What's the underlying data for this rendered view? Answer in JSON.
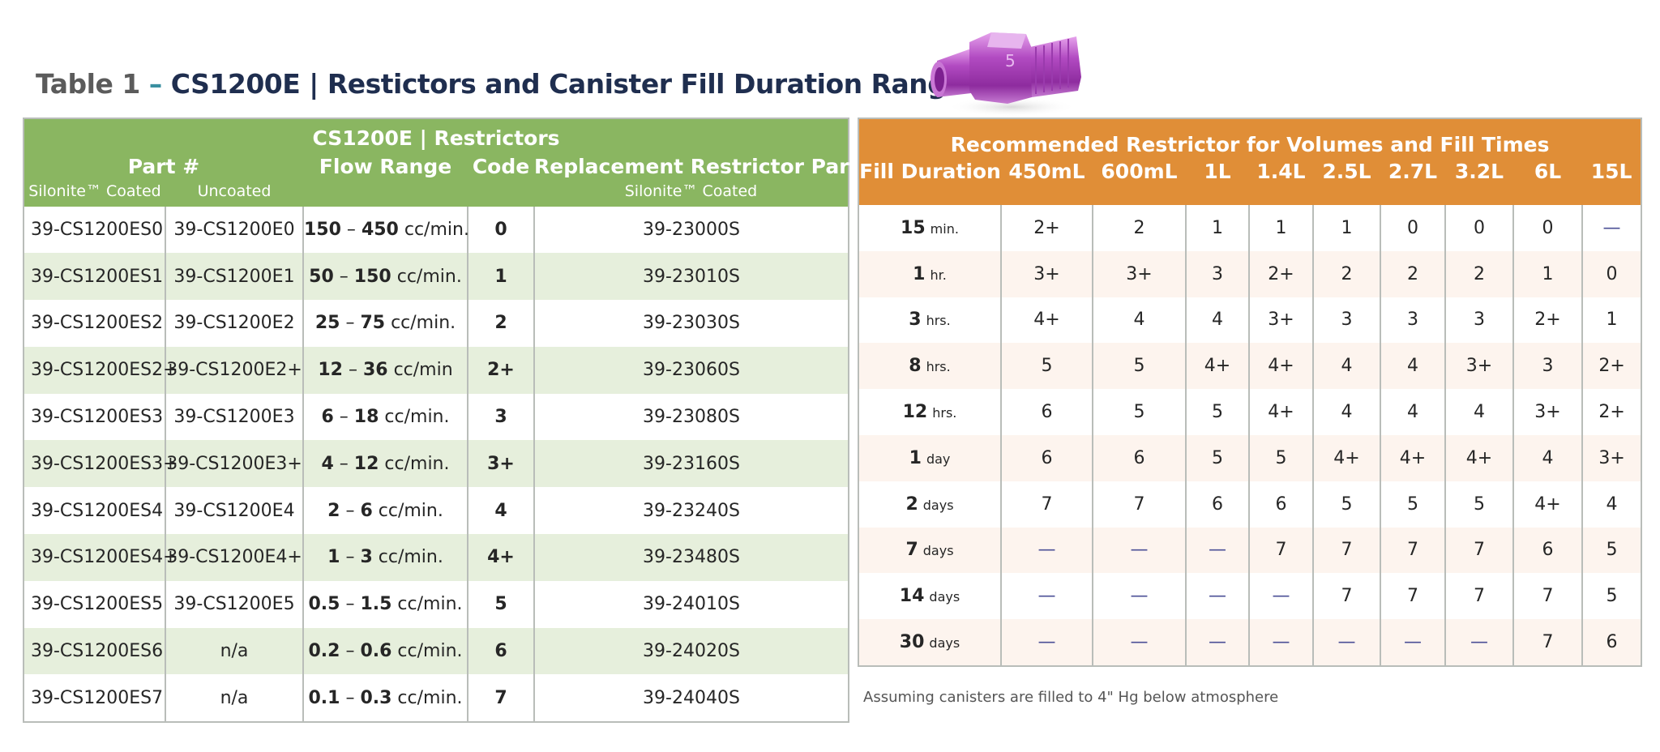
{
  "title": {
    "prefix": "Table 1",
    "separator": "–",
    "main": "CS1200E | Restictors and Canister Fill Duration Range"
  },
  "colors": {
    "left_header": "#8ab661",
    "left_alt_row": "#e6efdc",
    "right_header": "#e08e37",
    "right_alt_row": "#fdf4ee",
    "title_dark": "#1f2e4f",
    "dash_color": "#4b4f96"
  },
  "left_table": {
    "header_title": "CS1200E | Restrictors",
    "col_part": "Part #",
    "col_flow": "Flow Range",
    "col_code": "Code",
    "col_replacement": "Replacement Restrictor Part #",
    "sub_silonite": "Silonite™ Coated",
    "sub_uncoated": "Uncoated",
    "sub_replacement": "Silonite™ Coated",
    "rows": [
      {
        "coated": "39-CS1200ES0",
        "uncoated": "39-CS1200E0",
        "flow_lo": "150",
        "flow_sep": " – ",
        "flow_hi": "450",
        "flow_unit": " cc/min.",
        "code": "0",
        "replacement": "39-23000S"
      },
      {
        "coated": "39-CS1200ES1",
        "uncoated": "39-CS1200E1",
        "flow_lo": "50",
        "flow_sep": " – ",
        "flow_hi": "150",
        "flow_unit": " cc/min.",
        "code": "1",
        "replacement": "39-23010S"
      },
      {
        "coated": "39-CS1200ES2",
        "uncoated": "39-CS1200E2",
        "flow_lo": "25",
        "flow_sep": " – ",
        "flow_hi": "75",
        "flow_unit": " cc/min.",
        "code": "2",
        "replacement": "39-23030S"
      },
      {
        "coated": "39-CS1200ES2+",
        "uncoated": "39-CS1200E2+",
        "flow_lo": "12",
        "flow_sep": " – ",
        "flow_hi": "36",
        "flow_unit": " cc/min",
        "code": "2+",
        "replacement": "39-23060S"
      },
      {
        "coated": "39-CS1200ES3",
        "uncoated": "39-CS1200E3",
        "flow_lo": "6",
        "flow_sep": " – ",
        "flow_hi": "18",
        "flow_unit": " cc/min.",
        "code": "3",
        "replacement": "39-23080S"
      },
      {
        "coated": "39-CS1200ES3+",
        "uncoated": "39-CS1200E3+",
        "flow_lo": "4",
        "flow_sep": " – ",
        "flow_hi": "12",
        "flow_unit": " cc/min.",
        "code": "3+",
        "replacement": "39-23160S"
      },
      {
        "coated": "39-CS1200ES4",
        "uncoated": "39-CS1200E4",
        "flow_lo": "2",
        "flow_sep": " – ",
        "flow_hi": "6",
        "flow_unit": " cc/min.",
        "code": "4",
        "replacement": "39-23240S"
      },
      {
        "coated": "39-CS1200ES4+",
        "uncoated": "39-CS1200E4+",
        "flow_lo": "1",
        "flow_sep": " – ",
        "flow_hi": "3",
        "flow_unit": " cc/min.",
        "code": "4+",
        "replacement": "39-23480S"
      },
      {
        "coated": "39-CS1200ES5",
        "uncoated": "39-CS1200E5",
        "flow_lo": "0.5",
        "flow_sep": " – ",
        "flow_hi": "1.5",
        "flow_unit": " cc/min.",
        "code": "5",
        "replacement": "39-24010S"
      },
      {
        "coated": "39-CS1200ES6",
        "uncoated": "n/a",
        "flow_lo": "0.2",
        "flow_sep": " – ",
        "flow_hi": "0.6",
        "flow_unit": " cc/min.",
        "code": "6",
        "replacement": "39-24020S"
      },
      {
        "coated": "39-CS1200ES7",
        "uncoated": "n/a",
        "flow_lo": "0.1",
        "flow_sep": " – ",
        "flow_hi": "0.3",
        "flow_unit": " cc/min.",
        "code": "7",
        "replacement": "39-24040S"
      }
    ]
  },
  "right_table": {
    "header_title": "Recommended Restrictor for Volumes and Fill Times",
    "col_duration": "Fill Duration",
    "volumes": [
      "450mL",
      "600mL",
      "1L",
      "1.4L",
      "2.5L",
      "2.7L",
      "3.2L",
      "6L",
      "15L"
    ],
    "rows": [
      {
        "num": "15",
        "unit": "min.",
        "values": [
          "2+",
          "2",
          "1",
          "1",
          "1",
          "0",
          "0",
          "0",
          "—"
        ]
      },
      {
        "num": "1",
        "unit": "hr.",
        "values": [
          "3+",
          "3+",
          "3",
          "2+",
          "2",
          "2",
          "2",
          "1",
          "0"
        ]
      },
      {
        "num": "3",
        "unit": "hrs.",
        "values": [
          "4+",
          "4",
          "4",
          "3+",
          "3",
          "3",
          "3",
          "2+",
          "1"
        ]
      },
      {
        "num": "8",
        "unit": "hrs.",
        "values": [
          "5",
          "5",
          "4+",
          "4+",
          "4",
          "4",
          "3+",
          "3",
          "2+"
        ]
      },
      {
        "num": "12",
        "unit": "hrs.",
        "values": [
          "6",
          "5",
          "5",
          "4+",
          "4",
          "4",
          "4",
          "3+",
          "2+"
        ]
      },
      {
        "num": "1",
        "unit": "day",
        "values": [
          "6",
          "6",
          "5",
          "5",
          "4+",
          "4+",
          "4+",
          "4",
          "3+"
        ]
      },
      {
        "num": "2",
        "unit": "days",
        "values": [
          "7",
          "7",
          "6",
          "6",
          "5",
          "5",
          "5",
          "4+",
          "4"
        ]
      },
      {
        "num": "7",
        "unit": "days",
        "values": [
          "—",
          "—",
          "—",
          "7",
          "7",
          "7",
          "7",
          "6",
          "5"
        ]
      },
      {
        "num": "14",
        "unit": "days",
        "values": [
          "—",
          "—",
          "—",
          "—",
          "7",
          "7",
          "7",
          "7",
          "5"
        ]
      },
      {
        "num": "30",
        "unit": "days",
        "values": [
          "—",
          "—",
          "—",
          "—",
          "—",
          "—",
          "—",
          "7",
          "6"
        ]
      }
    ],
    "note": "Assuming canisters are filled to 4\" Hg below atmosphere"
  },
  "image": {
    "icon": "restrictor-fitting-icon",
    "marking": "5"
  }
}
